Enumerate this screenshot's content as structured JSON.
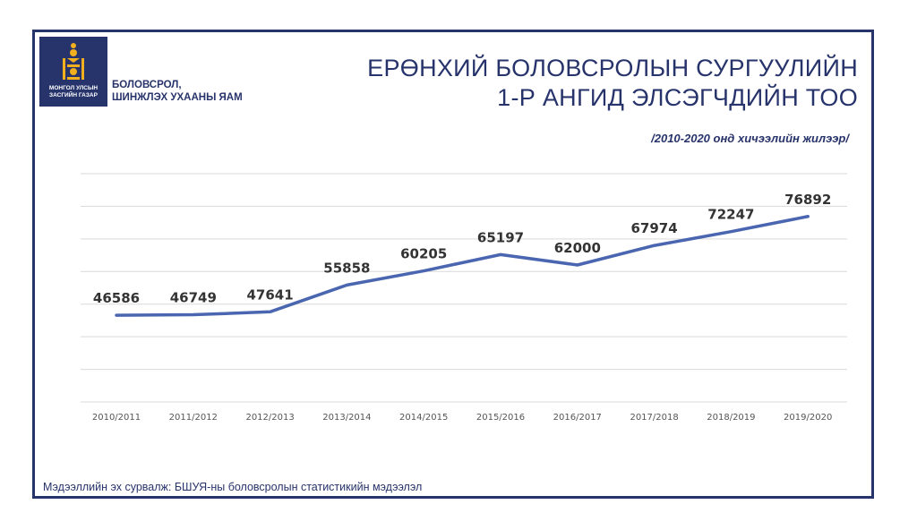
{
  "header": {
    "logo_line1": "МОНГОЛ УЛСЫН",
    "logo_line2": "ЗАСГИЙН ГАЗАР",
    "ministry_line1": "БОЛОВСРОЛ,",
    "ministry_line2": "ШИНЖЛЭХ УХААНЫ ЯАМ",
    "title_line1": "ЕРӨНХИЙ БОЛОВСРОЛЫН СУРГУУЛИЙН",
    "title_line2": "1-Р АНГИД ЭЛСЭГЧДИЙН ТОО",
    "subtitle": "/2010-2020 онд хичээлийн жилээр/"
  },
  "footer": {
    "source": "Мэдээллийн эх сурвалж: БШУЯ-ны боловсролын статистикийн мэдээлэл"
  },
  "colors": {
    "brand": "#27336b",
    "line": "#4a66b0",
    "grid": "#d9d9d9",
    "emblem": "#f2b01e"
  },
  "chart_data": {
    "type": "line",
    "title": "ЕРӨНХИЙ БОЛОВСРОЛЫН СУРГУУЛИЙН 1-Р АНГИД ЭЛСЭГЧДИЙН ТОО",
    "subtitle": "/2010-2020 онд хичээлийн жилээр/",
    "categories": [
      "2010/2011",
      "2011/2012",
      "2012/2013",
      "2013/2014",
      "2014/2015",
      "2015/2016",
      "2016/2017",
      "2017/2018",
      "2018/2019",
      "2019/2020"
    ],
    "series": [
      {
        "values": [
          46586,
          46749,
          47641,
          55858,
          60205,
          65197,
          62000,
          67974,
          72247,
          76892
        ]
      }
    ],
    "ylim": [
      20000,
      90000
    ],
    "grid": true,
    "data_labels": true
  }
}
